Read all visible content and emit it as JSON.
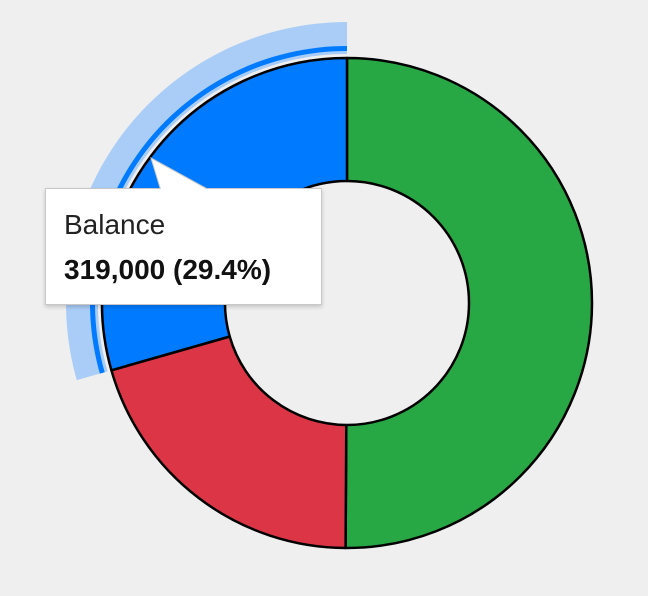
{
  "chart_data": {
    "type": "donut",
    "slices": [
      {
        "name": "",
        "value": 543000,
        "color": "#28a745"
      },
      {
        "name": "",
        "value": 222000,
        "color": "#dc3545"
      },
      {
        "name": "Balance",
        "value": 319000,
        "color": "#007bff"
      }
    ],
    "highlighted_slice": "Balance",
    "highlight_color": "#007bff",
    "highlight_halo_color": "#a9cdf7",
    "outline_color": "#000000",
    "background_color": "#efefef"
  },
  "tooltip": {
    "label": "Balance",
    "value_text": "319,000 (29.4%)"
  }
}
